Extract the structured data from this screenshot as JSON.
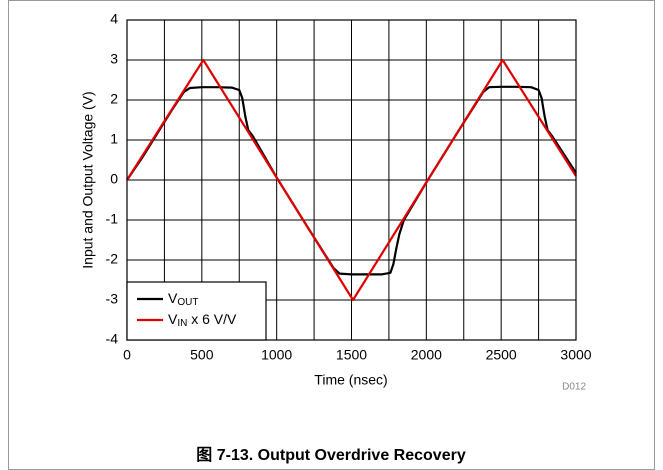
{
  "chart_data": {
    "type": "line",
    "caption": "图 7-13. Output Overdrive Recovery",
    "code": "D012",
    "xlabel": "Time (nsec)",
    "ylabel": "Input and Output Voltage (V)",
    "xlim": [
      0,
      3000
    ],
    "ylim": [
      -4,
      4
    ],
    "xticks": [
      0,
      500,
      1000,
      1500,
      2000,
      2500,
      3000
    ],
    "xminor": [
      250,
      750,
      1250,
      1750,
      2250,
      2750
    ],
    "yticks": [
      -4,
      -3,
      -2,
      -1,
      0,
      1,
      2,
      3,
      4
    ],
    "grid": true,
    "legend": "lower left",
    "series": [
      {
        "label": {
          "base": "V",
          "sub": "OUT"
        },
        "color": "#000000",
        "x": [
          0,
          100,
          200,
          300,
          380,
          420,
          500,
          600,
          700,
          750,
          770,
          790,
          810,
          840,
          1000,
          1200,
          1380,
          1420,
          1500,
          1600,
          1700,
          1760,
          1780,
          1800,
          1820,
          1850,
          2000,
          2200,
          2380,
          2420,
          2500,
          2600,
          2700,
          2750,
          2770,
          2790,
          2810,
          2840,
          3000
        ],
        "values": [
          0,
          0.55,
          1.15,
          1.75,
          2.2,
          2.3,
          2.32,
          2.32,
          2.31,
          2.25,
          2.05,
          1.6,
          1.25,
          1.1,
          0.06,
          -1.14,
          -2.2,
          -2.34,
          -2.36,
          -2.36,
          -2.36,
          -2.32,
          -2.1,
          -1.7,
          -1.35,
          -1.0,
          -0.06,
          1.14,
          2.2,
          2.32,
          2.33,
          2.33,
          2.32,
          2.25,
          2.05,
          1.6,
          1.25,
          1.1,
          0.18
        ]
      },
      {
        "label": {
          "base": "V",
          "sub": "IN",
          "suffix": " x 6 V/V"
        },
        "color": "#e00000",
        "x": [
          0,
          510,
          1510,
          2510,
          3000
        ],
        "values": [
          0,
          3,
          -3,
          3,
          0.1
        ]
      }
    ]
  }
}
